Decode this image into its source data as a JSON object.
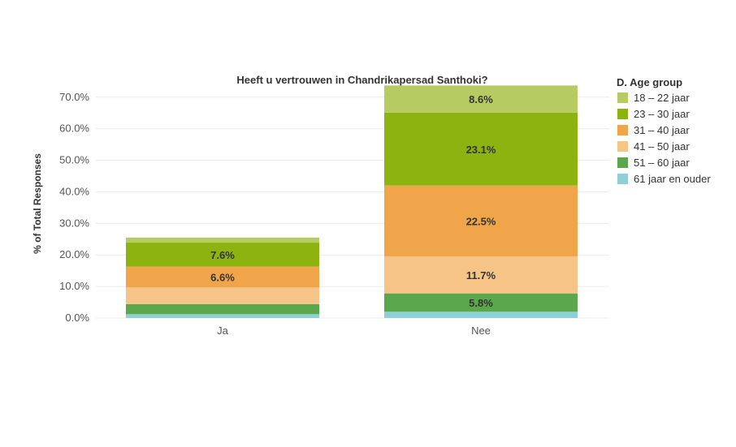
{
  "chart_data": {
    "type": "bar",
    "stacked": true,
    "title": "Heeft u vertrouwen in Chandrikapersad Santhoki?",
    "xlabel": "",
    "ylabel": "% of Total Responses",
    "ylim": [
      0,
      72
    ],
    "yticks": [
      0,
      10,
      20,
      30,
      40,
      50,
      60,
      70
    ],
    "ytick_labels": [
      "0.0%",
      "10.0%",
      "20.0%",
      "30.0%",
      "40.0%",
      "50.0%",
      "60.0%",
      "70.0%"
    ],
    "grid": true,
    "legend": {
      "title": "D. Age group",
      "placement": "top-right"
    },
    "categories": [
      "Ja",
      "Nee"
    ],
    "series": [
      {
        "name": "61 jaar en ouder",
        "color": "#8fcfd6",
        "values": [
          1.2,
          2.0
        ],
        "labels": [
          "",
          ""
        ]
      },
      {
        "name": "51 – 60 jaar",
        "color": "#5aa84b",
        "values": [
          3.2,
          5.8
        ],
        "labels": [
          "",
          "5.8%"
        ]
      },
      {
        "name": "41 – 50 jaar",
        "color": "#f6c487",
        "values": [
          5.3,
          11.7
        ],
        "labels": [
          "",
          "11.7%"
        ]
      },
      {
        "name": "31 – 40 jaar",
        "color": "#f1a54a",
        "values": [
          6.6,
          22.5
        ],
        "labels": [
          "6.6%",
          "22.5%"
        ]
      },
      {
        "name": "23 – 30 jaar",
        "color": "#8db311",
        "values": [
          7.6,
          23.1
        ],
        "labels": [
          "7.6%",
          "23.1%"
        ]
      },
      {
        "name": "18 – 22 jaar",
        "color": "#b6cc62",
        "values": [
          1.6,
          8.6
        ],
        "labels": [
          "",
          "8.6%"
        ]
      }
    ]
  }
}
